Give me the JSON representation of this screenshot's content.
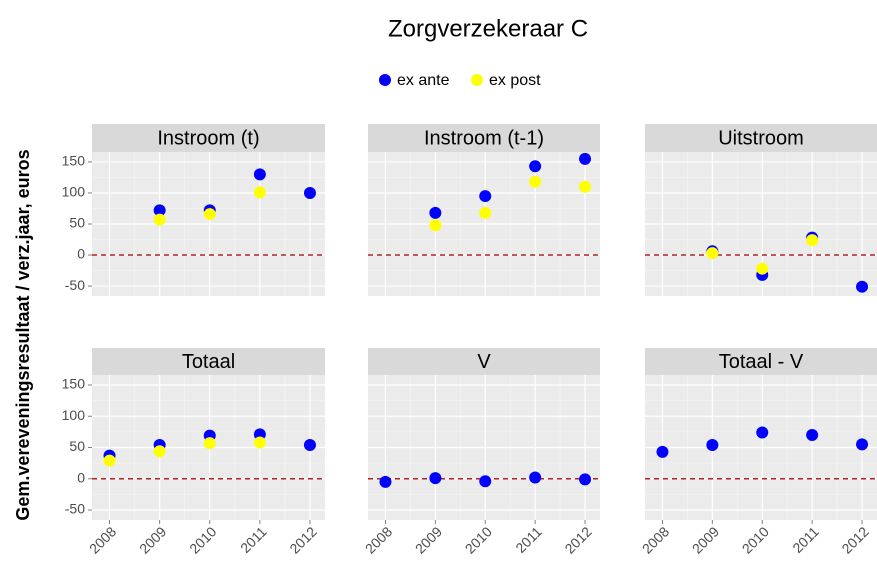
{
  "title": "Zorgverzekeraar C",
  "y_label": "Gem.vereveningsresultaat / verz.jaar, euros",
  "chart_data": [
    {
      "type": "scatter",
      "title": "Instroom (t)",
      "x": [
        2008,
        2009,
        2010,
        2011,
        2012
      ],
      "series": [
        {
          "name": "ex ante",
          "color": "#0000ff",
          "values": [
            null,
            72,
            72,
            130,
            100
          ]
        },
        {
          "name": "ex post",
          "color": "#ffff00",
          "values": [
            null,
            57,
            66,
            101,
            null
          ]
        }
      ],
      "xlim": [
        2007.65,
        2012.3
      ],
      "xticks": [
        2008,
        2009,
        2010,
        2011,
        2012
      ],
      "ylim": [
        -66,
        166
      ],
      "yticks": [
        -50,
        0,
        50,
        100,
        150
      ],
      "hline": 0,
      "hline_color": "#b22222",
      "grid": true
    },
    {
      "type": "scatter",
      "title": "Instroom (t-1)",
      "x": [
        2008,
        2009,
        2010,
        2011,
        2012
      ],
      "series": [
        {
          "name": "ex ante",
          "color": "#0000ff",
          "values": [
            null,
            68,
            95,
            143,
            155
          ]
        },
        {
          "name": "ex post",
          "color": "#ffff00",
          "values": [
            null,
            48,
            68,
            118,
            110
          ]
        }
      ],
      "xlim": [
        2007.65,
        2012.3
      ],
      "xticks": [
        2008,
        2009,
        2010,
        2011,
        2012
      ],
      "ylim": [
        -66,
        166
      ],
      "yticks": [
        -50,
        0,
        50,
        100,
        150
      ],
      "hline": 0,
      "hline_color": "#b22222",
      "grid": true
    },
    {
      "type": "scatter",
      "title": "Uitstroom",
      "x": [
        2008,
        2009,
        2010,
        2011,
        2012
      ],
      "series": [
        {
          "name": "ex ante",
          "color": "#0000ff",
          "values": [
            null,
            6,
            -32,
            28,
            -51
          ]
        },
        {
          "name": "ex post",
          "color": "#ffff00",
          "values": [
            null,
            3,
            -22,
            24,
            null
          ]
        }
      ],
      "xlim": [
        2007.65,
        2012.3
      ],
      "xticks": [
        2008,
        2009,
        2010,
        2011,
        2012
      ],
      "ylim": [
        -66,
        166
      ],
      "yticks": [
        -50,
        0,
        50,
        100,
        150
      ],
      "hline": 0,
      "hline_color": "#b22222",
      "grid": true
    },
    {
      "type": "scatter",
      "title": "Totaal",
      "x": [
        2008,
        2009,
        2010,
        2011,
        2012
      ],
      "series": [
        {
          "name": "ex ante",
          "color": "#0000ff",
          "values": [
            37,
            54,
            69,
            71,
            54
          ]
        },
        {
          "name": "ex post",
          "color": "#ffff00",
          "values": [
            29,
            44,
            57,
            58,
            null
          ]
        }
      ],
      "xlim": [
        2007.65,
        2012.3
      ],
      "xticks": [
        2008,
        2009,
        2010,
        2011,
        2012
      ],
      "ylim": [
        -66,
        166
      ],
      "yticks": [
        -50,
        0,
        50,
        100,
        150
      ],
      "hline": 0,
      "hline_color": "#b22222",
      "grid": true
    },
    {
      "type": "scatter",
      "title": "V",
      "x": [
        2008,
        2009,
        2010,
        2011,
        2012
      ],
      "series": [
        {
          "name": "ex ante",
          "color": "#0000ff",
          "values": [
            -5,
            1,
            -4,
            2,
            -1
          ]
        }
      ],
      "xlim": [
        2007.65,
        2012.3
      ],
      "xticks": [
        2008,
        2009,
        2010,
        2011,
        2012
      ],
      "ylim": [
        -66,
        166
      ],
      "yticks": [
        -50,
        0,
        50,
        100,
        150
      ],
      "hline": 0,
      "hline_color": "#b22222",
      "grid": true
    },
    {
      "type": "scatter",
      "title": "Totaal - V",
      "x": [
        2008,
        2009,
        2010,
        2011,
        2012
      ],
      "series": [
        {
          "name": "ex ante",
          "color": "#0000ff",
          "values": [
            43,
            54,
            74,
            70,
            55
          ]
        }
      ],
      "xlim": [
        2007.65,
        2012.3
      ],
      "xticks": [
        2008,
        2009,
        2010,
        2011,
        2012
      ],
      "ylim": [
        -66,
        166
      ],
      "yticks": [
        -50,
        0,
        50,
        100,
        150
      ],
      "hline": 0,
      "hline_color": "#b22222",
      "grid": true
    }
  ]
}
